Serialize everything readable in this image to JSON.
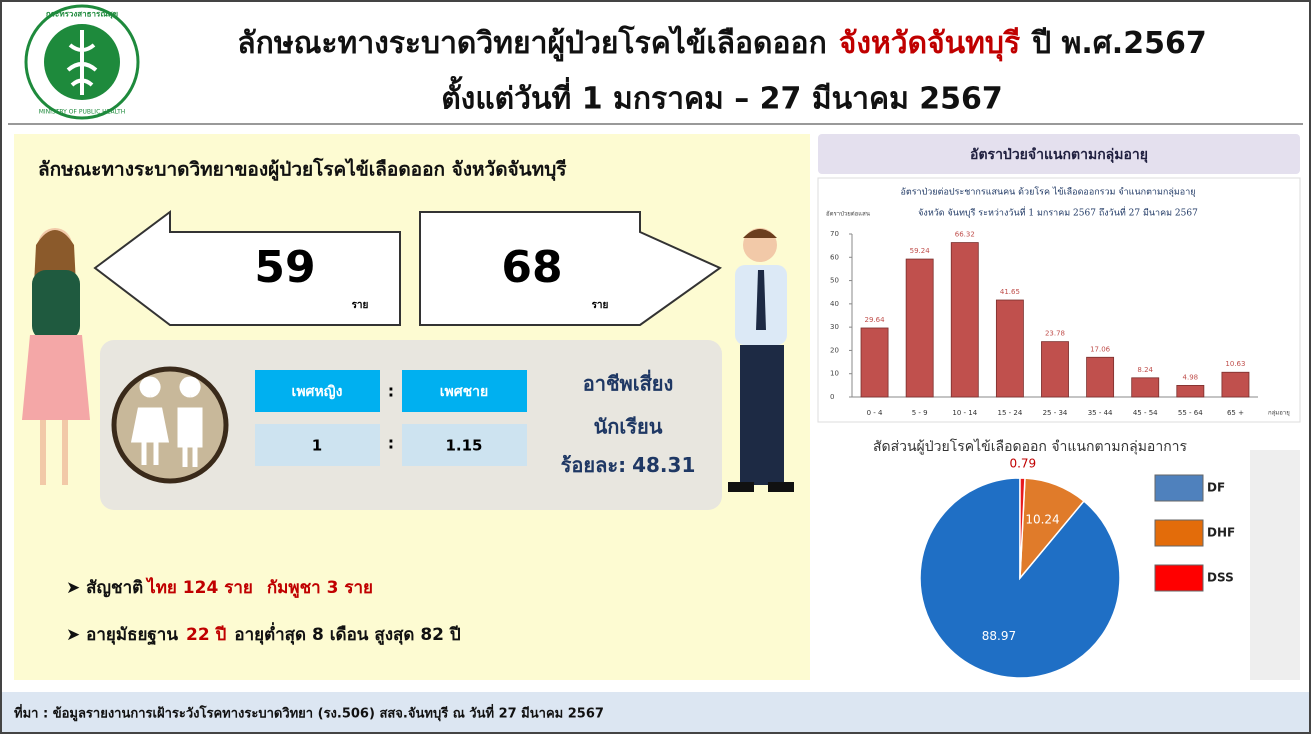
{
  "header": {
    "title_main": "ลักษณะทางระบาดวิทยาผู้ป่วยโรคไข้เลือดออก",
    "title_province": "จังหวัดจันทบุรี",
    "title_year": "ปี พ.ศ.2567",
    "subtitle": "ตั้งแต่วันที่ 1 มกราคม – 27 มีนาคม 2567"
  },
  "logo": {
    "top_text": "กระทรวงสาธารณสุข",
    "bottom_text": "MINISTRY OF PUBLIC HEALTH"
  },
  "summary": {
    "title": "ลักษณะทางระบาดวิทยาของผู้ป่วยโรคไข้เลือดออก จังหวัดจันทบุรี",
    "female_count": 59,
    "male_count": 68,
    "unit": "ราย",
    "ratio": {
      "female_label": "เพศหญิง",
      "male_label": "เพศชาย",
      "separator": ":",
      "female_value": 1,
      "male_value": 1.15
    },
    "occupation": {
      "title": "อาชีพเสี่ยง",
      "name": "นักเรียน",
      "percent_label": "ร้อยละ:",
      "percent": 48.31
    },
    "nationality": {
      "label": "สัญชาติ",
      "thai": "ไทย 124 ราย",
      "cambodian": "กัมพูชา 3 ราย"
    },
    "age": {
      "label": "อายุมัธยฐาน",
      "median": "22 ปี",
      "range": "อายุต่ำสุด 8 เดือน สูงสุด 82 ปี"
    }
  },
  "right_panel_title": "อัตราป่วยจำแนกตามกลุ่มอายุ",
  "chart_data": [
    {
      "type": "bar",
      "title": "อัตราป่วยต่อประชากรแสนคน ด้วยโรค ไข้เลือดออกรวม จำแนกตามกลุ่มอายุ",
      "subtitle": "จังหวัด จันทบุรี ระหว่างวันที่ 1 มกราคม 2567 ถึงวันที่ 27 มีนาคม 2567",
      "y_label": "อัตราป่วยต่อแสน",
      "x_label": "กลุ่มอายุ",
      "categories": [
        "0 - 4",
        "5 - 9",
        "10 - 14",
        "15 - 24",
        "25 - 34",
        "35 - 44",
        "45 - 54",
        "55 - 64",
        "65 +"
      ],
      "values": [
        29.64,
        59.24,
        66.32,
        41.65,
        23.78,
        17.06,
        8.24,
        4.98,
        10.63
      ],
      "color": "#c0504d",
      "ylim": [
        0,
        70
      ],
      "yticks": [
        0,
        10,
        20,
        30,
        40,
        50,
        60,
        70
      ]
    },
    {
      "type": "pie",
      "title": "สัดส่วนผู้ป่วยโรคไข้เลือดออก จำแนกตามกลุ่มอาการ",
      "categories": [
        "DF",
        "DHF",
        "DSS"
      ],
      "values": [
        88.97,
        10.24,
        0.79
      ],
      "colors": [
        "#1f6fc5",
        "#e07b2a",
        "#e8191c"
      ],
      "legend_colors": [
        "#4f81bd",
        "#e36c0a",
        "#ff0000"
      ]
    }
  ],
  "footer": "ที่มา : ข้อมูลรายงานการเฝ้าระวังโรคทางระบาดวิทยา (รง.506) สสจ.จันทบุรี ณ วันที่ 27 มีนาคม 2567"
}
